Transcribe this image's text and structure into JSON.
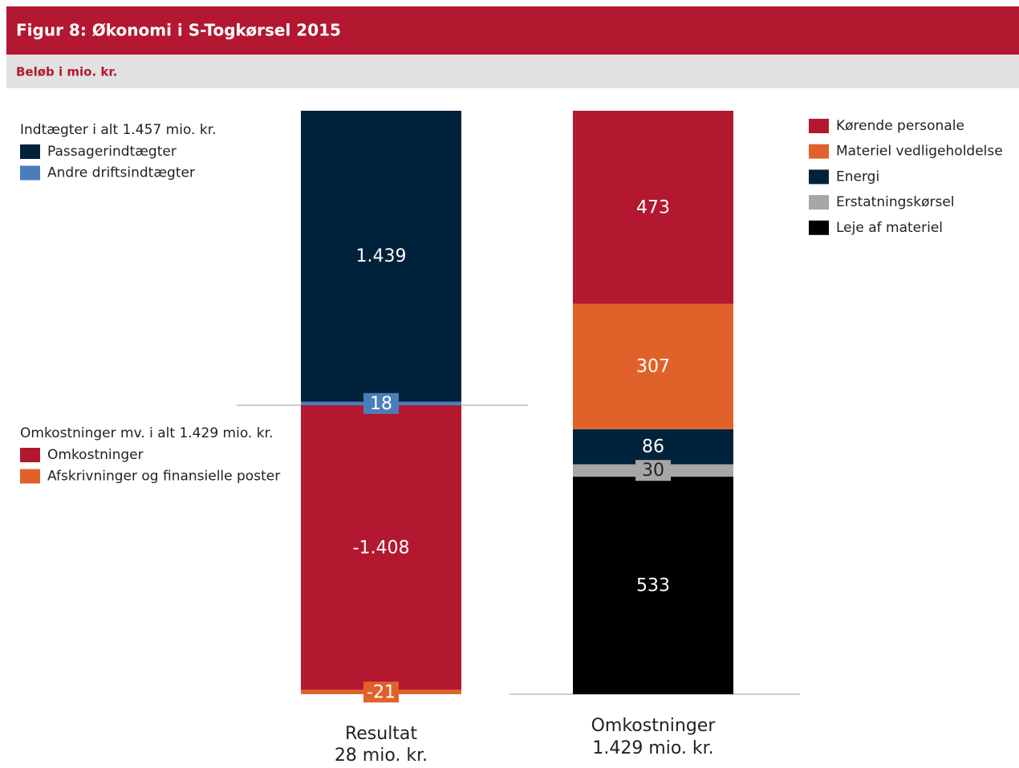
{
  "header": {
    "title": "Figur 8: Økonomi i S-Togkørsel 2015",
    "subtitle": "Beløb i mio. kr."
  },
  "chart_data": [
    {
      "type": "stacked_bar",
      "categories": [
        "Resultat"
      ],
      "total_label": "28 mio. kr.",
      "ylim": [
        -1429,
        1457
      ],
      "series_groups": [
        {
          "title": "Indtægter i alt 1.457 mio. kr.",
          "series": [
            {
              "name": "Passagerindtægter",
              "color": "#00223b",
              "values": [
                1439
              ],
              "value_labels": [
                "1.439"
              ]
            },
            {
              "name": "Andre driftsindtægter",
              "color": "#4a7ebb",
              "values": [
                18
              ],
              "value_labels": [
                "18"
              ]
            }
          ]
        },
        {
          "title": "Omkostninger mv. i alt 1.429 mio. kr.",
          "series": [
            {
              "name": "Omkostninger",
              "color": "#b41730",
              "values": [
                -1408
              ],
              "value_labels": [
                "-1.408"
              ]
            },
            {
              "name": "Afskrivninger og finansielle poster",
              "color": "#e0622a",
              "values": [
                -21
              ],
              "value_labels": [
                "-21"
              ]
            }
          ]
        }
      ]
    },
    {
      "type": "stacked_bar",
      "categories": [
        "Omkostninger"
      ],
      "total_label": "1.429 mio. kr.",
      "ylim": [
        0,
        1429
      ],
      "series_groups": [
        {
          "series": [
            {
              "name": "Kørende personale",
              "color": "#b41730",
              "values": [
                473
              ],
              "value_labels": [
                "473"
              ]
            },
            {
              "name": "Materiel vedligeholdelse",
              "color": "#e0622a",
              "values": [
                307
              ],
              "value_labels": [
                "307"
              ]
            },
            {
              "name": "Energi",
              "color": "#00223b",
              "values": [
                86
              ],
              "value_labels": [
                "86"
              ]
            },
            {
              "name": "Erstatningskørsel",
              "color": "#a6a6a6",
              "values": [
                30
              ],
              "value_labels": [
                "30"
              ]
            },
            {
              "name": "Leje af materiel",
              "color": "#000000",
              "values": [
                533
              ],
              "value_labels": [
                "533"
              ]
            }
          ]
        }
      ]
    }
  ]
}
